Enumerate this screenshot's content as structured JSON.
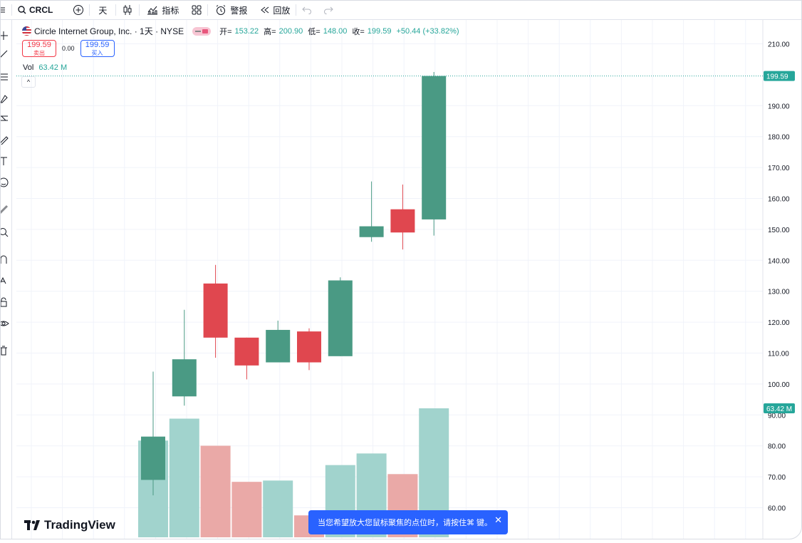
{
  "toolbar": {
    "symbol": "CRCL",
    "interval": "天",
    "indicators_label": "指标",
    "alert_label": "警报",
    "replay_label": "回放"
  },
  "legend": {
    "title": "Circle Internet Group, Inc. · 1天 · NYSE",
    "open_label": "开=",
    "open": "153.22",
    "high_label": "高=",
    "high": "200.90",
    "low_label": "低=",
    "low": "148.00",
    "close_label": "收=",
    "close": "199.59",
    "change": "+50.44 (+33.82%)",
    "sell_price": "199.59",
    "sell_label": "卖出",
    "spread": "0.00",
    "buy_price": "199.59",
    "buy_label": "买入",
    "vol_label": "Vol",
    "vol_value": "63.42 M"
  },
  "price_axis": {
    "last_price_tag": "199.59",
    "volume_tag": "63.42 M"
  },
  "branding": {
    "logo_text": "TradingView"
  },
  "toast": {
    "message": "当您希望放大您鼠标聚焦的点位时，请按住⌘ 键。"
  },
  "colors": {
    "up": "#26a69a",
    "down": "#ef5350",
    "up_candle": "#4a9a84",
    "down_candle": "#e0474f",
    "up_volume": "#a1d3cd",
    "down_volume": "#eaa9a7",
    "accent": "#2962ff"
  },
  "chart_data": {
    "type": "candlestick",
    "y_ticks": [
      "60.00",
      "70.00",
      "80.00",
      "90.00",
      "100.00",
      "110.00",
      "120.00",
      "130.00",
      "140.00",
      "150.00",
      "160.00",
      "170.00",
      "180.00",
      "190.00",
      "210.00"
    ],
    "ylim": [
      54,
      216
    ],
    "candles": [
      {
        "open": 69,
        "high": 104,
        "low": 64,
        "close": 83
      },
      {
        "open": 96,
        "high": 124,
        "low": 93,
        "close": 108
      },
      {
        "open": 132.5,
        "high": 138.5,
        "low": 108.5,
        "close": 115
      },
      {
        "open": 115,
        "high": 115,
        "low": 101.5,
        "close": 106
      },
      {
        "open": 107,
        "high": 120.5,
        "low": 107,
        "close": 117.5
      },
      {
        "open": 117,
        "high": 118,
        "low": 104.5,
        "close": 107
      },
      {
        "open": 109,
        "high": 134.5,
        "low": 109,
        "close": 133.5
      },
      {
        "open": 147.5,
        "high": 165.5,
        "low": 146,
        "close": 151
      },
      {
        "open": 156.5,
        "high": 164.5,
        "low": 143.5,
        "close": 149
      },
      {
        "open": 153.22,
        "high": 200.9,
        "low": 148.0,
        "close": 199.59
      }
    ],
    "volume_bars": [
      {
        "level": 0.75,
        "dir": "up"
      },
      {
        "level": 0.92,
        "dir": "up"
      },
      {
        "level": 0.71,
        "dir": "down"
      },
      {
        "level": 0.43,
        "dir": "down"
      },
      {
        "level": 0.44,
        "dir": "up"
      },
      {
        "level": 0.17,
        "dir": "down"
      },
      {
        "level": 0.56,
        "dir": "up"
      },
      {
        "level": 0.65,
        "dir": "up"
      },
      {
        "level": 0.49,
        "dir": "down"
      },
      {
        "level": 1.0,
        "dir": "up"
      }
    ]
  }
}
